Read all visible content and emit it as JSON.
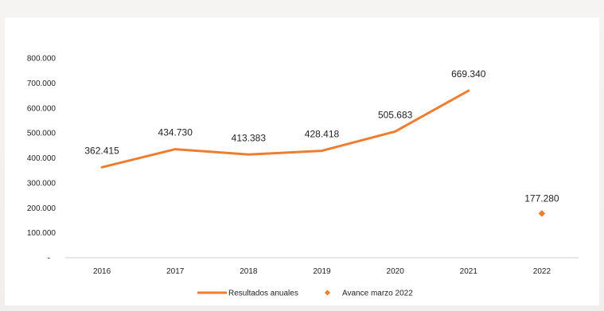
{
  "chart_data": {
    "type": "line",
    "categories": [
      "2016",
      "2017",
      "2018",
      "2019",
      "2020",
      "2021",
      "2022"
    ],
    "ylim": [
      0,
      800000
    ],
    "y_ticks": [
      "-",
      "100.000",
      "200.000",
      "300.000",
      "400.000",
      "500.000",
      "600.000",
      "700.000",
      "800.000"
    ],
    "grid": false,
    "legend_position": "bottom",
    "series": [
      {
        "name": "Resultados anuales",
        "kind": "line",
        "color": "#ed7d31",
        "x": [
          "2016",
          "2017",
          "2018",
          "2019",
          "2020",
          "2021"
        ],
        "values": [
          362415,
          434730,
          413383,
          428418,
          505683,
          669340
        ],
        "labels": [
          "362.415",
          "434.730",
          "413.383",
          "428.418",
          "505.683",
          "669.340"
        ]
      },
      {
        "name": "Avance marzo 2022",
        "kind": "marker",
        "color": "#ed7d31",
        "x": [
          "2022"
        ],
        "values": [
          177280
        ],
        "labels": [
          "177.280"
        ]
      }
    ]
  }
}
